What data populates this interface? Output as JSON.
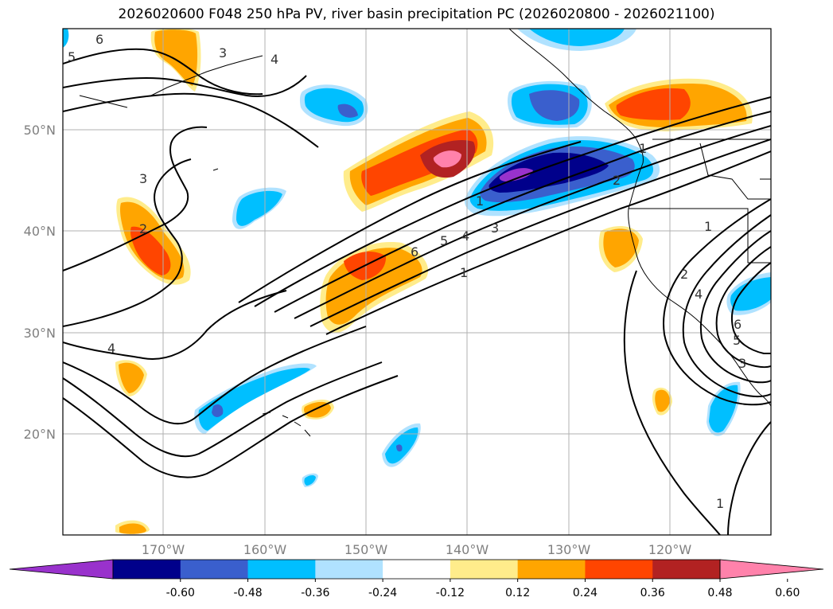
{
  "title": "2026020600 F048 250 hPa PV, river basin precipitation PC (2026020800 - 2026021100)",
  "lat_labels": [
    "50°N",
    "40°N",
    "30°N",
    "20°N"
  ],
  "lon_labels": [
    "170°W",
    "160°W",
    "150°W",
    "140°W",
    "130°W",
    "120°W"
  ],
  "colorbar": {
    "colors": [
      "#9932cc",
      "#00008b",
      "#3a5fcd",
      "#00bfff",
      "#b0e2ff",
      "#ffffff",
      "#ffec8b",
      "#ffa500",
      "#ff4500",
      "#b22222",
      "#ff82ab"
    ],
    "ticks": [
      "-0.60",
      "-0.48",
      "-0.36",
      "-0.24",
      "-0.12",
      "0.12",
      "0.24",
      "0.36",
      "0.48",
      "0.60"
    ]
  },
  "contour_labels": [
    "6",
    "5",
    "3",
    "4",
    "3",
    "2",
    "1",
    "2",
    "1",
    "6",
    "5",
    "4",
    "3",
    "1",
    "4",
    "1",
    "2",
    "4",
    "5",
    "6",
    "3",
    "1"
  ]
}
